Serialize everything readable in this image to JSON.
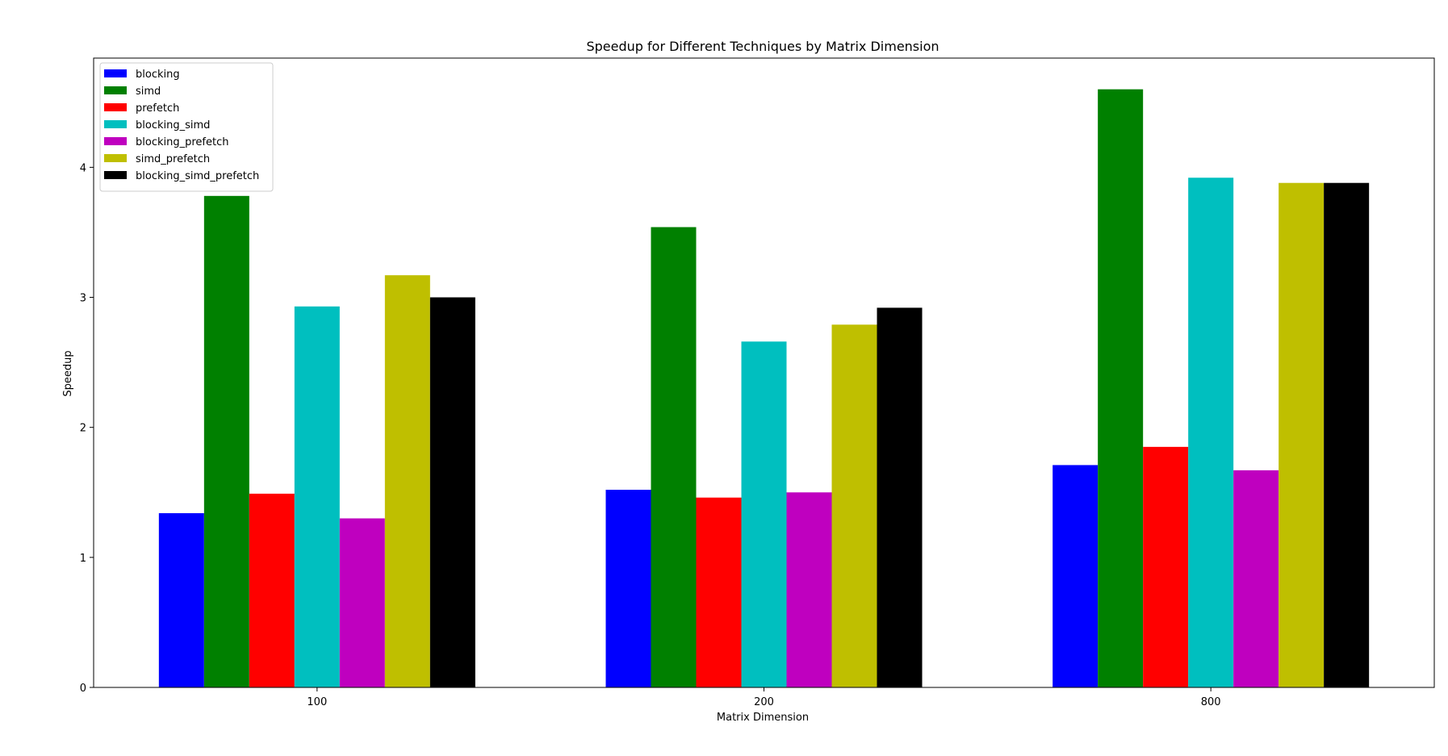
{
  "chart_data": {
    "type": "bar",
    "title": "Speedup for Different Techniques by Matrix Dimension",
    "xlabel": "Matrix Dimension",
    "ylabel": "Speedup",
    "categories": [
      "100",
      "200",
      "800"
    ],
    "ylim": [
      0,
      4.84
    ],
    "yticks": [
      0,
      1,
      2,
      3,
      4
    ],
    "grid": false,
    "legend_position": "top-left",
    "series": [
      {
        "name": "blocking",
        "color": "#0000ff",
        "values": [
          1.34,
          1.52,
          1.71
        ]
      },
      {
        "name": "simd",
        "color": "#008000",
        "values": [
          3.78,
          3.54,
          4.6
        ]
      },
      {
        "name": "prefetch",
        "color": "#ff0000",
        "values": [
          1.49,
          1.46,
          1.85
        ]
      },
      {
        "name": "blocking_simd",
        "color": "#00bfbf",
        "values": [
          2.93,
          2.66,
          3.92
        ]
      },
      {
        "name": "blocking_prefetch",
        "color": "#bf00bf",
        "values": [
          1.3,
          1.5,
          1.67
        ]
      },
      {
        "name": "simd_prefetch",
        "color": "#bfbf00",
        "values": [
          3.17,
          2.79,
          3.88
        ]
      },
      {
        "name": "blocking_simd_prefetch",
        "color": "#000000",
        "values": [
          3.0,
          2.92,
          3.88
        ]
      }
    ]
  }
}
